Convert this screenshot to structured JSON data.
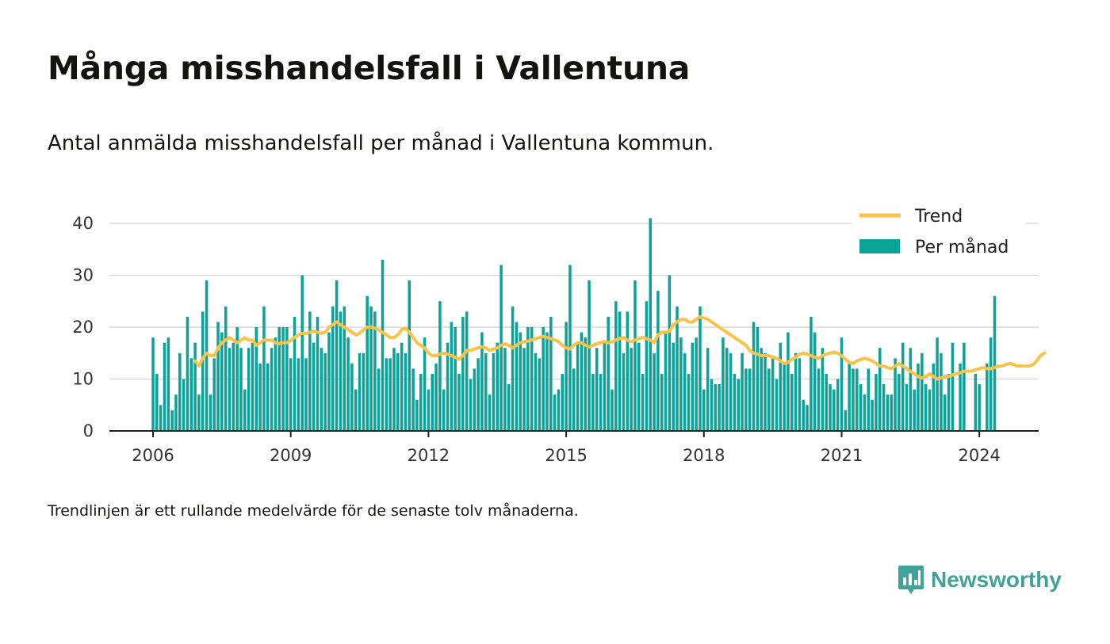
{
  "header": {
    "title": "Många misshandelsfall i Vallentuna",
    "subtitle": "Antal anmälda misshandelsfall per månad i Vallentuna kommun."
  },
  "footer": {
    "note": "Trendlinjen är ett rullande medelvärde för de senaste tolv månaderna.",
    "brand": "Newsworthy"
  },
  "colors": {
    "bar": "#0aa39a",
    "trend": "#fbc24a",
    "grid": "#d9d9d9",
    "axis": "#222222",
    "brand": "#41a29a"
  },
  "icons": {
    "brand_logo": "bar-chart-badge-icon"
  },
  "chart_data": {
    "type": "bar",
    "title": "Många misshandelsfall i Vallentuna",
    "xlabel": "",
    "ylabel": "",
    "x_start": "2006-01",
    "ylim": [
      0,
      42
    ],
    "yticks": [
      0,
      10,
      20,
      30,
      40
    ],
    "xticks": [
      "2006",
      "2009",
      "2012",
      "2015",
      "2018",
      "2021",
      "2024"
    ],
    "grid": true,
    "legend_position": "top-right",
    "series": [
      {
        "name": "Per månad",
        "type": "bar",
        "values": [
          18,
          11,
          5,
          17,
          18,
          4,
          7,
          15,
          10,
          22,
          14,
          17,
          7,
          23,
          29,
          7,
          14,
          21,
          19,
          24,
          16,
          17,
          20,
          16,
          8,
          16,
          17,
          20,
          13,
          24,
          13,
          16,
          18,
          20,
          20,
          20,
          14,
          22,
          14,
          30,
          14,
          23,
          17,
          22,
          16,
          15,
          19,
          24,
          29,
          23,
          24,
          18,
          13,
          8,
          15,
          15,
          26,
          24,
          23,
          12,
          33,
          14,
          14,
          16,
          15,
          17,
          15,
          29,
          12,
          6,
          11,
          18,
          8,
          11,
          13,
          25,
          8,
          17,
          21,
          20,
          11,
          22,
          23,
          10,
          12,
          14,
          19,
          15,
          7,
          15,
          17,
          32,
          16,
          9,
          24,
          21,
          19,
          16,
          20,
          20,
          15,
          14,
          20,
          19,
          22,
          7,
          8,
          11,
          21,
          32,
          12,
          17,
          19,
          18,
          29,
          11,
          16,
          11,
          17,
          22,
          8,
          25,
          23,
          15,
          23,
          16,
          29,
          17,
          11,
          25,
          41,
          15,
          27,
          11,
          19,
          30,
          17,
          24,
          18,
          15,
          11,
          17,
          18,
          24,
          8,
          16,
          10,
          9,
          9,
          18,
          16,
          15,
          11,
          10,
          15,
          12,
          12,
          21,
          20,
          16,
          15,
          12,
          14,
          10,
          17,
          13,
          19,
          11,
          15,
          14,
          6,
          5,
          22,
          19,
          12,
          16,
          11,
          9,
          8,
          10,
          18,
          4,
          13,
          12,
          12,
          9,
          7,
          12,
          6,
          11,
          16,
          9,
          7,
          7,
          14,
          11,
          17,
          9,
          16,
          8,
          13,
          15,
          9,
          8,
          13,
          18,
          15,
          7,
          11,
          17,
          0,
          13,
          17,
          0,
          0,
          11,
          9,
          0,
          13,
          18,
          26
        ]
      },
      {
        "name": "Trend",
        "type": "line",
        "start_index": 11,
        "values": [
          13.5,
          12.5,
          14.0,
          15.0,
          14.5,
          14.5,
          16.0,
          17.0,
          17.5,
          18.0,
          17.5,
          17.0,
          17.5,
          18.0,
          17.5,
          17.5,
          16.5,
          17.0,
          17.5,
          17.5,
          17.5,
          17.0,
          16.8,
          17.0,
          17.0,
          17.5,
          18.0,
          18.5,
          18.8,
          18.8,
          19.0,
          19.2,
          19.0,
          18.8,
          19.0,
          20.0,
          20.5,
          21.0,
          20.5,
          20.0,
          19.5,
          19.0,
          18.5,
          18.8,
          19.5,
          20.0,
          20.0,
          19.8,
          19.5,
          19.0,
          18.5,
          18.0,
          18.0,
          18.5,
          19.5,
          19.8,
          19.0,
          18.0,
          17.0,
          16.5,
          16.0,
          15.0,
          14.5,
          14.5,
          14.8,
          15.0,
          14.8,
          14.5,
          14.2,
          13.8,
          14.5,
          15.5,
          15.5,
          15.8,
          16.0,
          16.2,
          16.0,
          15.5,
          15.8,
          16.0,
          16.5,
          16.8,
          16.5,
          16.0,
          16.5,
          17.0,
          17.2,
          17.3,
          17.5,
          17.8,
          18.0,
          18.2,
          18.0,
          17.8,
          17.5,
          17.2,
          16.5,
          16.0,
          15.8,
          16.5,
          17.0,
          17.0,
          16.5,
          16.2,
          16.5,
          16.8,
          17.0,
          17.2,
          17.0,
          17.2,
          17.5,
          17.8,
          18.0,
          17.5,
          17.2,
          17.5,
          17.8,
          18.0,
          17.8,
          17.5,
          17.0,
          18.5,
          19.0,
          19.0,
          19.2,
          20.5,
          21.0,
          21.5,
          21.5,
          21.0,
          21.0,
          21.5,
          22.0,
          21.8,
          21.5,
          21.0,
          20.5,
          20.0,
          19.5,
          19.0,
          18.5,
          18.0,
          17.5,
          17.0,
          16.5,
          15.5,
          15.0,
          14.8,
          14.5,
          14.5,
          14.5,
          14.2,
          14.0,
          13.5,
          13.0,
          13.2,
          13.8,
          14.2,
          14.8,
          15.0,
          14.8,
          14.5,
          14.2,
          14.0,
          14.5,
          14.8,
          15.0,
          15.2,
          15.0,
          14.5,
          13.8,
          13.2,
          13.0,
          13.5,
          13.8,
          14.0,
          13.8,
          13.5,
          13.0,
          12.5,
          12.5,
          12.2,
          12.0,
          12.5,
          13.0,
          12.5,
          12.0,
          11.5,
          11.0,
          10.5,
          10.2,
          10.5,
          11.0,
          10.5,
          10.0,
          10.2,
          10.5,
          10.5,
          10.8,
          11.0,
          11.2,
          11.5,
          11.5,
          11.5,
          11.8,
          12.0,
          12.2,
          12.0,
          12.0,
          12.2,
          12.5,
          12.5,
          12.8,
          13.0,
          12.8,
          12.5,
          12.5,
          12.5,
          12.5,
          12.8,
          13.5,
          14.5,
          15.0
        ]
      }
    ]
  }
}
